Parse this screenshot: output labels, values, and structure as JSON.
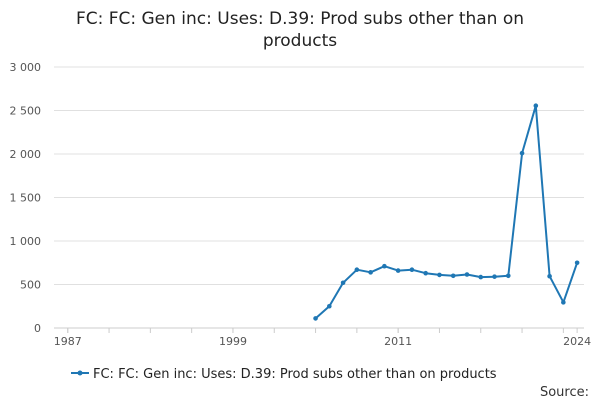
{
  "chart_data": {
    "type": "line",
    "title_lines": [
      "FC: FC: Gen inc: Uses: D.39: Prod subs other than on",
      "products"
    ],
    "xlabel": "",
    "ylabel": "",
    "xlim": [
      1986,
      2024.5
    ],
    "ylim": [
      0,
      3000
    ],
    "y_ticks": [
      0,
      500,
      1000,
      1500,
      2000,
      2500,
      3000
    ],
    "y_tick_labels": [
      "0",
      "500",
      "1 000",
      "1 500",
      "2 000",
      "2 500",
      "3 000"
    ],
    "x_tick_marks": [
      1987,
      1990,
      1993,
      1996,
      1999,
      2002,
      2005,
      2008,
      2011,
      2014,
      2017,
      2020,
      2023
    ],
    "x_tick_labels": [
      {
        "value": 1987,
        "label": "1987"
      },
      {
        "value": 1999,
        "label": "1999"
      },
      {
        "value": 2011,
        "label": "2011"
      },
      {
        "value": 2024,
        "label": "2024"
      }
    ],
    "grid": true,
    "legend_position": "bottom",
    "series": [
      {
        "name": "FC: FC: Gen inc: Uses: D.39: Prod subs other than on products",
        "color": "#1f77b4",
        "x": [
          2005,
          2006,
          2007,
          2008,
          2009,
          2010,
          2011,
          2012,
          2013,
          2014,
          2015,
          2016,
          2017,
          2018,
          2019,
          2020,
          2021,
          2022,
          2023,
          2024
        ],
        "y": [
          110,
          250,
          520,
          670,
          640,
          710,
          660,
          670,
          630,
          610,
          600,
          615,
          585,
          590,
          600,
          2010,
          2555,
          595,
          295,
          750
        ]
      }
    ],
    "source_label": "Source:"
  }
}
